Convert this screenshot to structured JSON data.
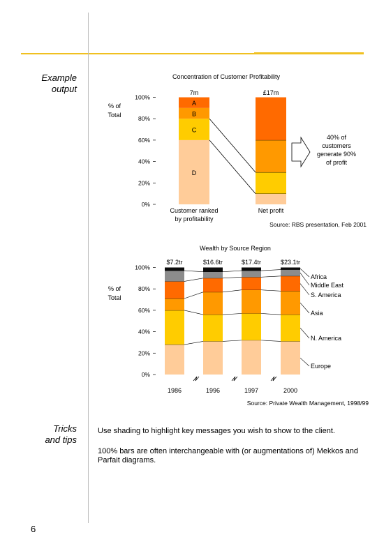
{
  "colors": {
    "topline": "#f0c020",
    "segments": {
      "black": "#0c0c0c",
      "grey": "#8c8c8c",
      "dark_orange": "#ff6a00",
      "orange": "#ff9900",
      "yellow": "#ffcc00",
      "peach": "#ffcc99"
    }
  },
  "side_labels": {
    "example": [
      "Example",
      "output"
    ],
    "tips": [
      "Tricks",
      "and tips"
    ]
  },
  "page_number": "6",
  "chart_data": [
    {
      "type": "bar",
      "stacked": true,
      "percent": true,
      "title": "Concentration of Customer Profitability",
      "ylabel": [
        "% of",
        "Total"
      ],
      "ylim": [
        0,
        100
      ],
      "yticks": [
        "0%",
        "20%",
        "40%",
        "60%",
        "80%",
        "100%"
      ],
      "categories": [
        {
          "label": [
            "Customer ranked",
            "by profitability"
          ],
          "top_label": "7m"
        },
        {
          "label": [
            "Net profit"
          ],
          "top_label": "£17m"
        }
      ],
      "bars": [
        {
          "segments": [
            {
              "value": 60,
              "color": "peach",
              "label": "D"
            },
            {
              "value": 20,
              "color": "yellow",
              "label": "C"
            },
            {
              "value": 10,
              "color": "orange",
              "label": "B"
            },
            {
              "value": 10,
              "color": "dark_orange",
              "label": "A"
            }
          ]
        },
        {
          "segments": [
            {
              "value": 10,
              "color": "peach"
            },
            {
              "value": 20,
              "color": "yellow"
            },
            {
              "value": 30,
              "color": "orange"
            },
            {
              "value": 40,
              "color": "dark_orange"
            }
          ]
        }
      ],
      "annotation": [
        "40% of",
        "customers",
        "generate 90%",
        "of profit"
      ],
      "source": "Source: RBS presentation, Feb 2001"
    },
    {
      "type": "bar",
      "stacked": true,
      "percent": true,
      "title": "Wealth by Source Region",
      "ylabel": [
        "% of",
        "Total"
      ],
      "ylim": [
        0,
        100
      ],
      "yticks": [
        "0%",
        "20%",
        "40%",
        "60%",
        "80%",
        "100%"
      ],
      "categories": [
        "1986",
        "1996",
        "1997",
        "2000"
      ],
      "top_labels": [
        "$7.2tr",
        "$16.6tr",
        "$17.4tr",
        "$23.1tr"
      ],
      "series": [
        {
          "name": "Europe",
          "color": "peach",
          "values": [
            28,
            31,
            32,
            31
          ]
        },
        {
          "name": "N. America",
          "color": "yellow",
          "values": [
            32,
            25,
            25,
            25
          ]
        },
        {
          "name": "Asia",
          "color": "orange",
          "values": [
            11,
            21,
            22,
            22
          ]
        },
        {
          "name": "S. America",
          "color": "dark_orange",
          "values": [
            16,
            13,
            12,
            14
          ]
        },
        {
          "name": "Middle East",
          "color": "grey",
          "values": [
            10,
            6,
            6,
            6
          ]
        },
        {
          "name": "Africa",
          "color": "black",
          "values": [
            3,
            4,
            3,
            2
          ]
        }
      ],
      "legend": [
        "Africa",
        "Middle East",
        "S. America",
        "Asia",
        "N. America",
        "Europe"
      ],
      "source": "Source: Private Wealth Management, 1998/99"
    }
  ],
  "tips": [
    "Use shading to highlight key messages you wish to show to the client.",
    "100% bars are often interchangeable with (or augmentations of) Mekkos and Parfait diagrams."
  ]
}
